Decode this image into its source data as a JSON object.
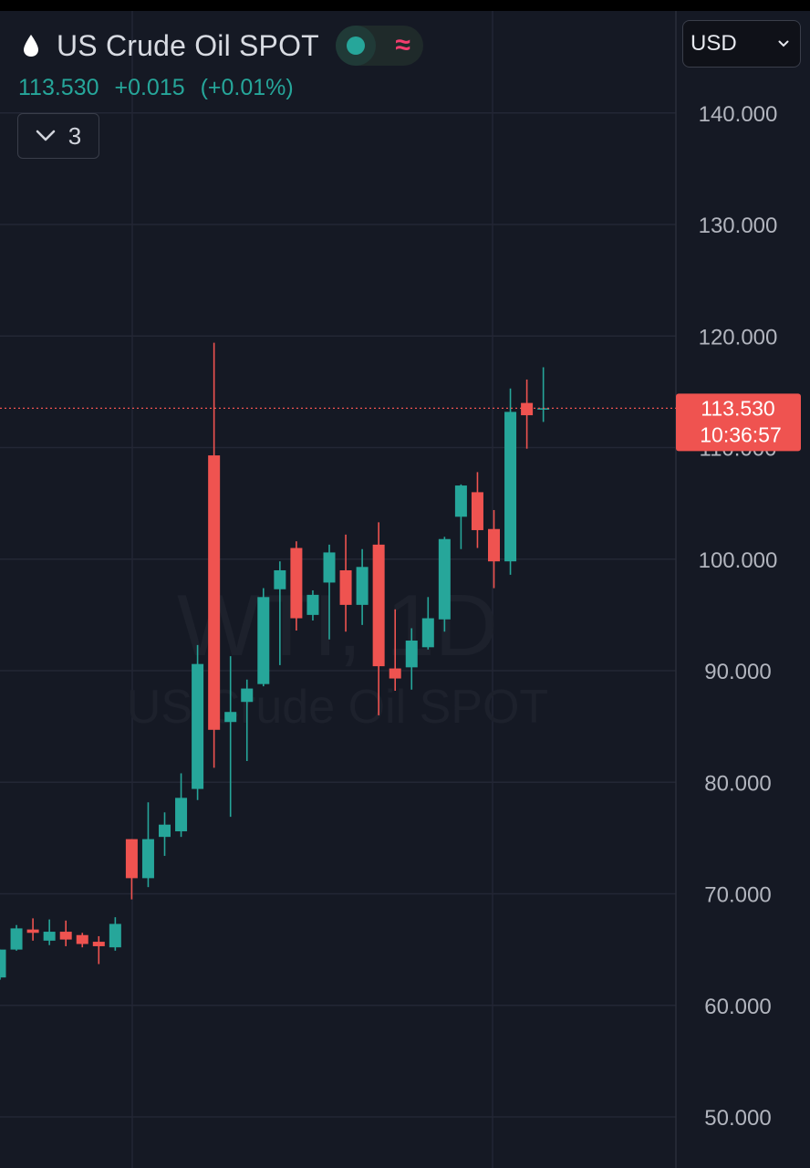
{
  "header": {
    "symbol": "US Crude Oil SPOT",
    "price": "113.530",
    "change": "+0.015",
    "change_pct": "(+0.01%)",
    "indicators_count": "3",
    "currency": "USD"
  },
  "icons": {
    "symbol_icon": "drop-icon",
    "status_icon": "market-status-dot",
    "delay_icon": "approx-icon",
    "indicator_toggle_icon": "chevron-down-icon",
    "currency_icon": "chevron-down-icon"
  },
  "colors": {
    "background": "#151924",
    "up": "#26a69a",
    "down": "#ef5350",
    "grid": "#232735",
    "axis_text": "#b2b5be"
  },
  "watermark": {
    "line1": "WTI, 1D",
    "line2": "US Crude Oil SPOT"
  },
  "last_price_label": {
    "price": "113.530",
    "countdown": "10:36:57"
  },
  "chart_data": {
    "type": "candlestick",
    "title": "US Crude Oil SPOT",
    "interval": "1D",
    "y_axis_side": "right",
    "ylim": [
      45,
      150
    ],
    "yticks": [
      50,
      60,
      70,
      80,
      90,
      100,
      110,
      120,
      130,
      140
    ],
    "ytick_labels": [
      "50.000",
      "60.000",
      "70.000",
      "80.000",
      "90.000",
      "100.000",
      "110.000",
      "120.000",
      "130.000",
      "140.000"
    ],
    "grid": true,
    "last_price": 113.53,
    "candles": [
      {
        "open": 62.5,
        "high": 65.0,
        "low": 62.3,
        "close": 65.0
      },
      {
        "open": 65.0,
        "high": 67.2,
        "low": 64.9,
        "close": 66.9
      },
      {
        "open": 66.8,
        "high": 67.8,
        "low": 65.8,
        "close": 66.5
      },
      {
        "open": 65.8,
        "high": 67.7,
        "low": 65.4,
        "close": 66.6
      },
      {
        "open": 66.6,
        "high": 67.6,
        "low": 65.3,
        "close": 65.9
      },
      {
        "open": 66.3,
        "high": 66.5,
        "low": 65.2,
        "close": 65.5
      },
      {
        "open": 65.7,
        "high": 66.2,
        "low": 63.7,
        "close": 65.3
      },
      {
        "open": 65.2,
        "high": 67.9,
        "low": 64.9,
        "close": 67.3
      },
      {
        "open": 74.9,
        "high": 74.9,
        "low": 69.5,
        "close": 71.4
      },
      {
        "open": 71.4,
        "high": 78.2,
        "low": 70.6,
        "close": 74.9
      },
      {
        "open": 75.1,
        "high": 77.3,
        "low": 73.4,
        "close": 76.2
      },
      {
        "open": 75.6,
        "high": 80.8,
        "low": 75.1,
        "close": 78.6
      },
      {
        "open": 79.4,
        "high": 92.3,
        "low": 78.4,
        "close": 90.6
      },
      {
        "open": 109.3,
        "high": 119.4,
        "low": 81.3,
        "close": 84.7
      },
      {
        "open": 85.4,
        "high": 91.3,
        "low": 76.9,
        "close": 86.3
      },
      {
        "open": 87.2,
        "high": 89.2,
        "low": 81.9,
        "close": 88.4
      },
      {
        "open": 88.8,
        "high": 97.4,
        "low": 88.6,
        "close": 96.6
      },
      {
        "open": 97.3,
        "high": 99.8,
        "low": 90.5,
        "close": 99.0
      },
      {
        "open": 101.0,
        "high": 101.6,
        "low": 93.6,
        "close": 94.7
      },
      {
        "open": 95.0,
        "high": 97.2,
        "low": 94.5,
        "close": 96.8
      },
      {
        "open": 97.9,
        "high": 101.3,
        "low": 92.8,
        "close": 100.6
      },
      {
        "open": 99.0,
        "high": 102.2,
        "low": 93.5,
        "close": 95.9
      },
      {
        "open": 95.9,
        "high": 100.9,
        "low": 94.1,
        "close": 99.3
      },
      {
        "open": 101.3,
        "high": 103.3,
        "low": 86.0,
        "close": 90.4
      },
      {
        "open": 90.2,
        "high": 95.5,
        "low": 88.2,
        "close": 89.3
      },
      {
        "open": 90.3,
        "high": 93.8,
        "low": 88.3,
        "close": 92.7
      },
      {
        "open": 92.1,
        "high": 96.6,
        "low": 91.9,
        "close": 94.7
      },
      {
        "open": 94.6,
        "high": 102.0,
        "low": 93.5,
        "close": 101.8
      },
      {
        "open": 103.8,
        "high": 106.7,
        "low": 100.9,
        "close": 106.6
      },
      {
        "open": 106.0,
        "high": 107.8,
        "low": 101.0,
        "close": 102.6
      },
      {
        "open": 102.7,
        "high": 104.4,
        "low": 97.4,
        "close": 99.8
      },
      {
        "open": 99.8,
        "high": 115.3,
        "low": 98.6,
        "close": 113.2
      },
      {
        "open": 114.0,
        "high": 116.1,
        "low": 109.9,
        "close": 112.9
      },
      {
        "open": 113.5,
        "high": 117.2,
        "low": 112.3,
        "close": 113.53
      }
    ]
  }
}
